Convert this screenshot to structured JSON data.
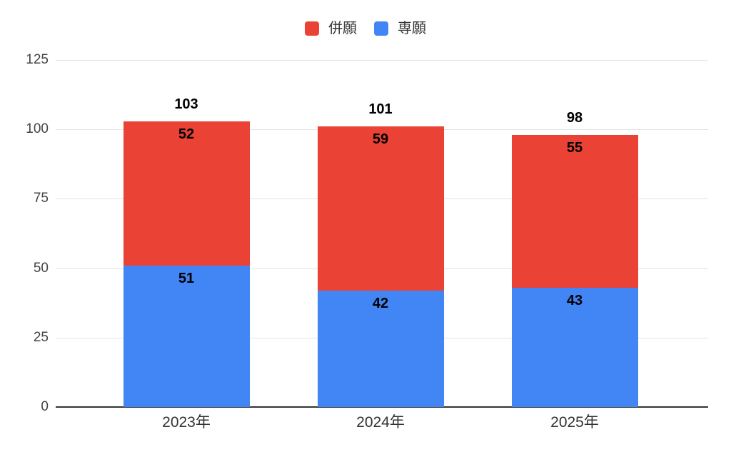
{
  "chart_data": {
    "type": "bar",
    "stacked": true,
    "title": "",
    "xlabel": "",
    "ylabel": "",
    "categories": [
      "2023年",
      "2024年",
      "2025年"
    ],
    "series": [
      {
        "name": "専願",
        "color": "#4285F4",
        "values": [
          51,
          42,
          43
        ]
      },
      {
        "name": "併願",
        "color": "#EA4335",
        "values": [
          52,
          59,
          55
        ]
      }
    ],
    "totals": [
      103,
      101,
      98
    ],
    "legend": {
      "position": "top",
      "items": [
        {
          "label": "併願",
          "color": "#EA4335"
        },
        {
          "label": "専願",
          "color": "#4285F4"
        }
      ]
    },
    "y_axis": {
      "min": 0,
      "max": 125,
      "tick_interval": 25,
      "ticks": [
        0,
        25,
        50,
        75,
        100,
        125
      ]
    },
    "grid": true,
    "colors": {
      "background": "#ffffff",
      "gridline": "#e3e3e3",
      "baseline": "#333333",
      "tick_text": "#444444",
      "category_text": "#333333",
      "value_text": "#000000"
    }
  }
}
